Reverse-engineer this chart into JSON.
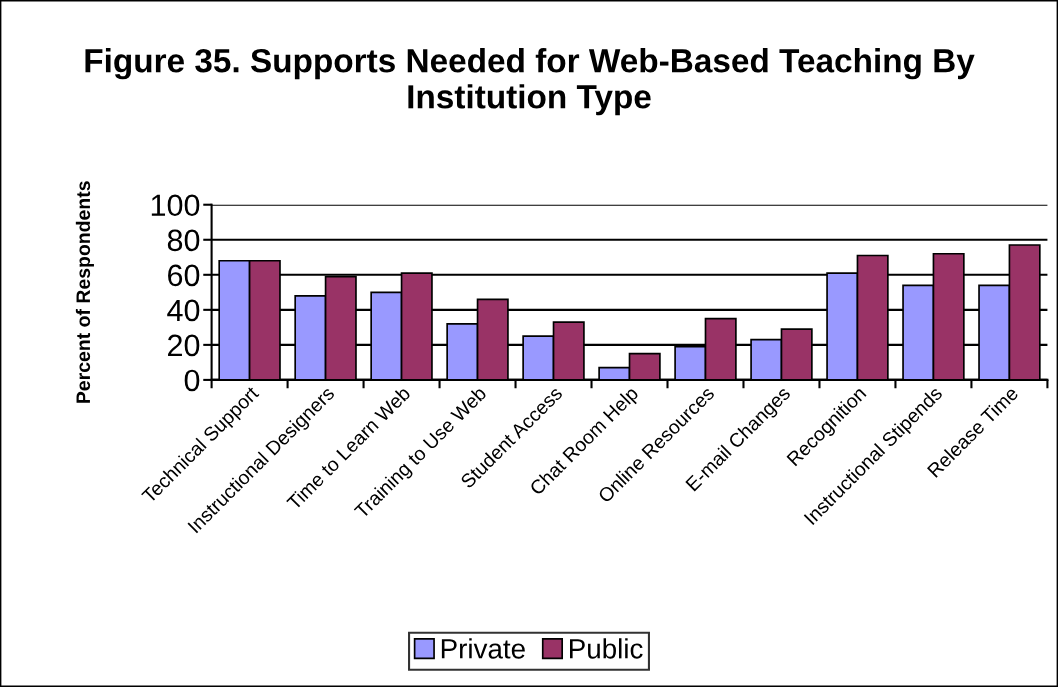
{
  "chart_data": {
    "type": "bar",
    "title": "Figure 35. Supports Needed for Web-Based Teaching By Institution Type",
    "ylabel": "Percent of Respondents",
    "categories": [
      "Technical Support",
      "Instructional Designers",
      "Time to Learn Web",
      "Training to Use Web",
      "Student Access",
      "Chat Room Help",
      "Online Resources",
      "E-mail Changes",
      "Recognition",
      "Instructional Stipends",
      "Release Time"
    ],
    "series": [
      {
        "name": "Private",
        "color": "#9999ff",
        "values": [
          68,
          48,
          50,
          32,
          25,
          7,
          19,
          23,
          61,
          54,
          54
        ]
      },
      {
        "name": "Public",
        "color": "#993366",
        "values": [
          68,
          59,
          61,
          46,
          33,
          15,
          35,
          29,
          71,
          72,
          77
        ]
      }
    ],
    "ylim": [
      0,
      100
    ],
    "yticks": [
      0,
      20,
      40,
      60,
      80,
      100
    ],
    "grid": "y",
    "legend": "bottom"
  }
}
